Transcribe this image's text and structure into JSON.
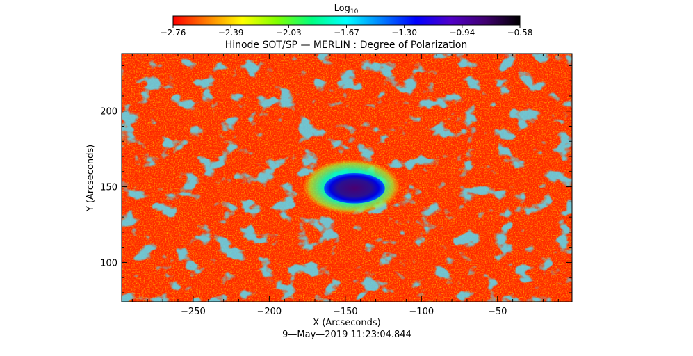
{
  "chart_data": {
    "type": "heatmap",
    "title": "Hinode SOT/SP — MERLIN : Degree of Polarization",
    "xlabel": "X (Arcseconds)",
    "ylabel": "Y (Arcseconds)",
    "footer": "9—May—2019 11:23:04.844",
    "xlim": [
      -297,
      -1
    ],
    "ylim": [
      74,
      238
    ],
    "x_ticks": [
      -250,
      -200,
      -150,
      -100,
      -50
    ],
    "y_ticks": [
      100,
      150,
      200
    ],
    "colorbar": {
      "title": "Log",
      "title_subscript": "10",
      "colormap": "rainbow-reversed (red → yellow → green → cyan → blue → purple → black)",
      "range": [
        -2.76,
        -0.58
      ],
      "tick_labels": [
        "−2.76",
        "−2.39",
        "−2.03",
        "−1.67",
        "−1.30",
        "−0.94",
        "−0.58"
      ],
      "stops": [
        "#ff0000",
        "#ff8000",
        "#ffff00",
        "#80ff00",
        "#00ff80",
        "#00ffff",
        "#0080ff",
        "#0000ff",
        "#5000c8",
        "#400070",
        "#000000"
      ]
    },
    "background_value": -2.7,
    "features": [
      {
        "label": "sunspot umbra",
        "x": -144,
        "y": 149,
        "rx": 20,
        "ry": 10,
        "value": -0.8
      },
      {
        "label": "sunspot penumbra",
        "x": -146,
        "y": 150,
        "rx": 32,
        "ry": 18,
        "value": -1.45
      }
    ]
  }
}
